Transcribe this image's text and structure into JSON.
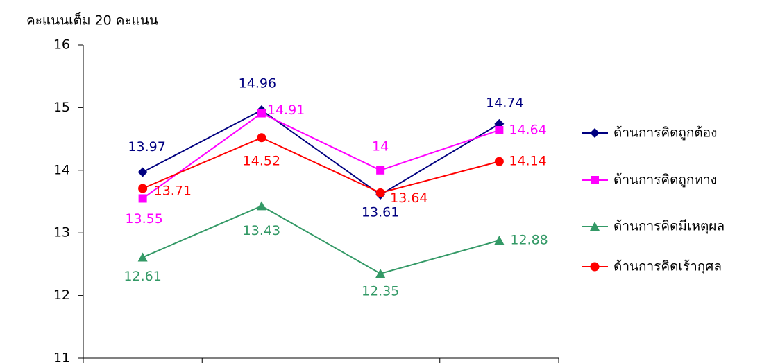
{
  "chart_data": {
    "type": "line",
    "title": "คะแนนเต็ม 20 คะแนน",
    "categories": [
      null,
      null,
      null,
      null
    ],
    "ylim": [
      11,
      16
    ],
    "yticks": [
      11,
      12,
      13,
      14,
      15,
      16
    ],
    "legend": "right",
    "series": [
      {
        "name": "ด้านการคิดถูกต้อง",
        "color": "#000080",
        "marker": "diamond",
        "values": [
          13.97,
          14.96,
          13.61,
          14.74
        ]
      },
      {
        "name": "ด้านการคิดถูกทาง",
        "color": "#ff00ff",
        "marker": "square",
        "values": [
          13.55,
          14.91,
          14,
          14.64
        ]
      },
      {
        "name": "ด้านการคิดมีเหตุผล",
        "color": "#339966",
        "marker": "triangle",
        "values": [
          12.61,
          13.43,
          12.35,
          12.88
        ]
      },
      {
        "name": "ด้านการคิดเร้ากุศล",
        "color": "#ff0000",
        "marker": "circle",
        "values": [
          13.71,
          14.52,
          13.64,
          14.14
        ]
      }
    ]
  }
}
